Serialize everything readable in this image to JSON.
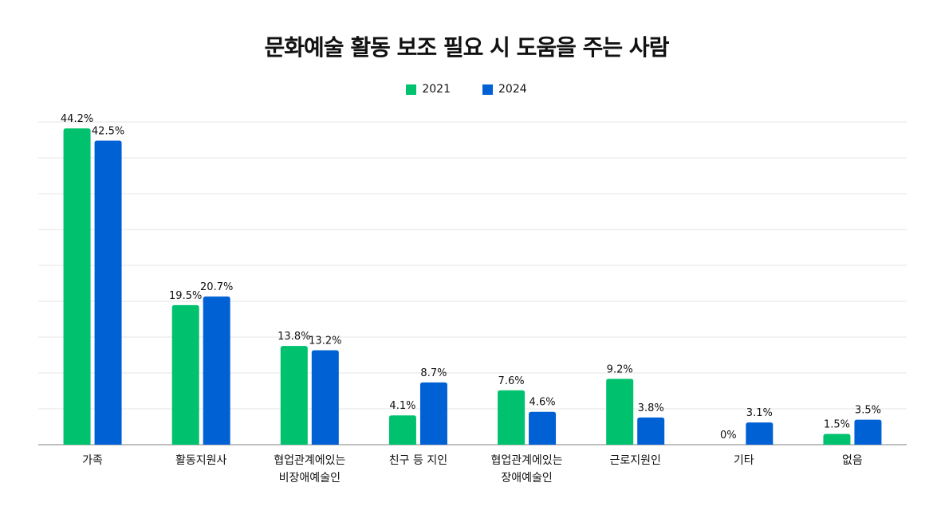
{
  "chart_data": {
    "type": "bar",
    "title": "문화예술 활동 보조 필요 시 도움을 주는 사람",
    "categories": [
      "가족",
      "활동지원사",
      "협업관계에있는\n비장애예술인",
      "친구 등 지인",
      "협업관계에있는\n장애예술인",
      "근로지원인",
      "기타",
      "없음"
    ],
    "series": [
      {
        "name": "2021",
        "color": "#00c26e",
        "values": [
          44.2,
          19.5,
          13.8,
          4.1,
          7.6,
          9.2,
          0,
          1.5
        ]
      },
      {
        "name": "2024",
        "color": "#0061d5",
        "values": [
          42.5,
          20.7,
          13.2,
          8.7,
          4.6,
          3.8,
          3.1,
          3.5
        ]
      }
    ],
    "ylim": [
      0,
      45
    ],
    "grid": true,
    "legend": "top-center",
    "value_suffix": "%"
  }
}
